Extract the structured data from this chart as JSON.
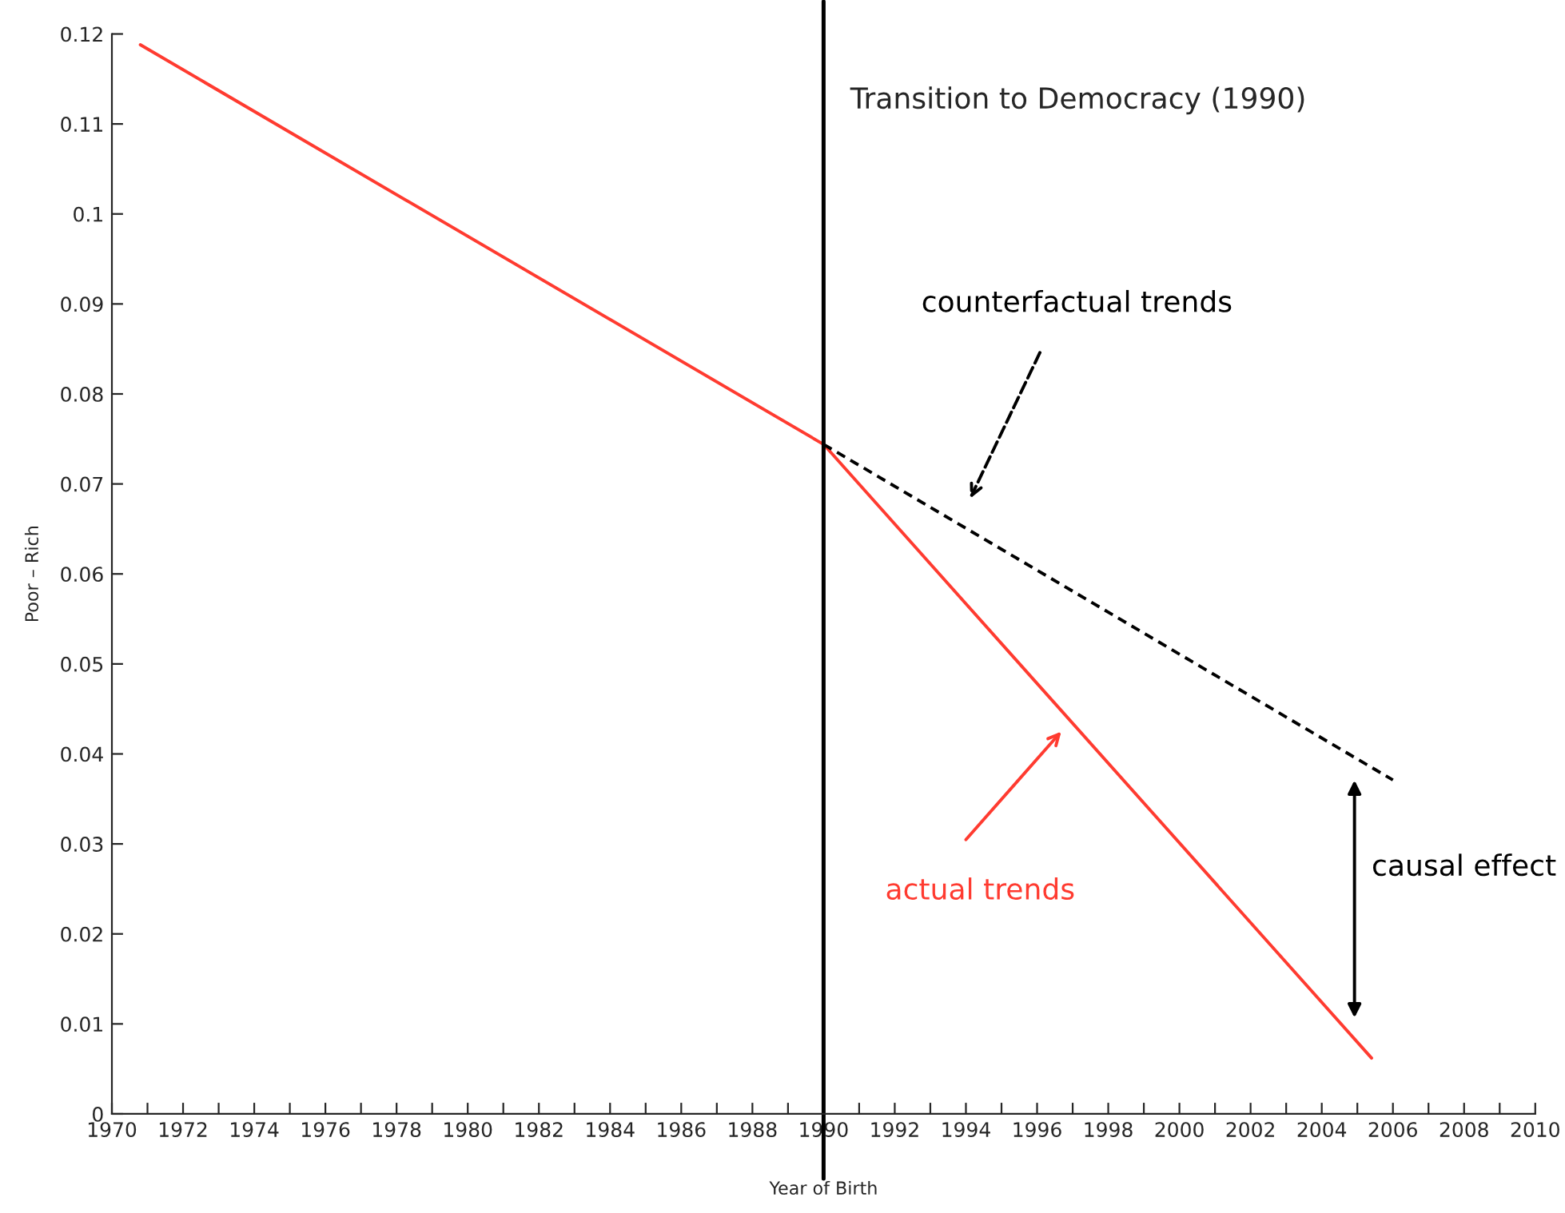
{
  "chart_data": {
    "type": "line",
    "xlabel": "Year of Birth",
    "ylabel": "Poor – Rich",
    "series": [
      {
        "color": "#ff3b30",
        "x": [
          1970.8,
          1990,
          2005.4
        ],
        "values": [
          0.1188,
          0.0744,
          0.0062
        ],
        "line_style": "solid"
      },
      {
        "color": "#000000",
        "x": [
          1990,
          2006.0
        ],
        "values": [
          0.0744,
          0.0371
        ],
        "line_style": "dashed"
      }
    ],
    "ref_lines": [
      {
        "axis": "x",
        "value": 1990,
        "label": "Transition to Democracy (1990)",
        "color": "#000000"
      }
    ],
    "annotations": [
      "counterfactual trends",
      "actual trends",
      "causal effect"
    ],
    "xlim": [
      1970,
      2010
    ],
    "xticks": [
      1970,
      {
        "value": 1971,
        "label": null
      },
      1972,
      {
        "value": 1973,
        "label": null
      },
      1974,
      {
        "value": 1975,
        "label": null
      },
      1976,
      {
        "value": 1977,
        "label": null
      },
      1978,
      {
        "value": 1979,
        "label": null
      },
      1980,
      {
        "value": 1981,
        "label": null
      },
      1982,
      {
        "value": 1983,
        "label": null
      },
      1984,
      {
        "value": 1985,
        "label": null
      },
      1986,
      {
        "value": 1987,
        "label": null
      },
      1988,
      {
        "value": 1989,
        "label": null
      },
      1990,
      {
        "value": 1991,
        "label": null
      },
      1992,
      {
        "value": 1993,
        "label": null
      },
      1994,
      {
        "value": 1995,
        "label": null
      },
      1996,
      {
        "value": 1997,
        "label": null
      },
      1998,
      {
        "value": 1999,
        "label": null
      },
      2000,
      {
        "value": 2001,
        "label": null
      },
      2002,
      {
        "value": 2003,
        "label": null
      },
      2004,
      {
        "value": 2005,
        "label": null
      },
      2006,
      {
        "value": 2007,
        "label": null
      },
      2008,
      {
        "value": 2009,
        "label": null
      },
      2010
    ],
    "ylim": [
      0,
      0.12
    ],
    "yticks": [
      0,
      0.01,
      0.02,
      0.03,
      0.04,
      0.05,
      0.06,
      0.07,
      0.08,
      0.09,
      0.1,
      0.11,
      0.12
    ],
    "grid": false,
    "legend": false
  }
}
